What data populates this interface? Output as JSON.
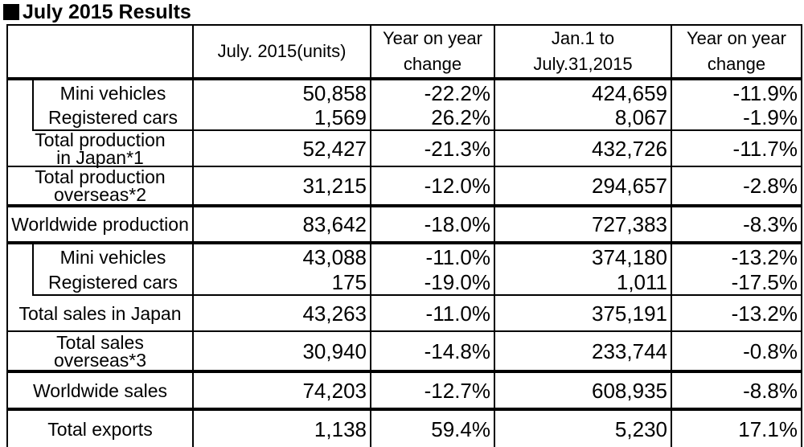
{
  "title": "July 2015 Results",
  "header": {
    "col1": "July. 2015(units)",
    "col2_line1": "Year on year",
    "col2_line2": "change",
    "col3_line1": "Jan.1 to",
    "col3_line2": "July.31,2015",
    "col4_line1": "Year on year",
    "col4_line2": "change"
  },
  "rows": [
    {
      "label": "Mini vehicles",
      "v1": "50,858",
      "v2": "-22.2%",
      "v3": "424,659",
      "v4": "-11.9%"
    },
    {
      "label": "Registered cars",
      "v1": "1,569",
      "v2": "26.2%",
      "v3": "8,067",
      "v4": "-1.9%"
    },
    {
      "label_line1": "Total production",
      "label_line2": "in Japan*1",
      "v1": "52,427",
      "v2": "-21.3%",
      "v3": "432,726",
      "v4": "-11.7%"
    },
    {
      "label_line1": "Total production",
      "label_line2": "overseas*2",
      "v1": "31,215",
      "v2": "-12.0%",
      "v3": "294,657",
      "v4": "-2.8%"
    },
    {
      "label": "Worldwide production",
      "v1": "83,642",
      "v2": "-18.0%",
      "v3": "727,383",
      "v4": "-8.3%"
    },
    {
      "label": "Mini vehicles",
      "v1": "43,088",
      "v2": "-11.0%",
      "v3": "374,180",
      "v4": "-13.2%"
    },
    {
      "label": "Registered cars",
      "v1": "175",
      "v2": "-19.0%",
      "v3": "1,011",
      "v4": "-17.5%"
    },
    {
      "label": "Total sales in Japan",
      "v1": "43,263",
      "v2": "-11.0%",
      "v3": "375,191",
      "v4": "-13.2%"
    },
    {
      "label_line1": "Total sales",
      "label_line2": "overseas*3",
      "v1": "30,940",
      "v2": "-14.8%",
      "v3": "233,744",
      "v4": "-0.8%"
    },
    {
      "label": "Worldwide sales",
      "v1": "74,203",
      "v2": "-12.7%",
      "v3": "608,935",
      "v4": "-8.8%"
    },
    {
      "label": "Total exports",
      "v1": "1,138",
      "v2": "59.4%",
      "v3": "5,230",
      "v4": "17.1%"
    }
  ]
}
